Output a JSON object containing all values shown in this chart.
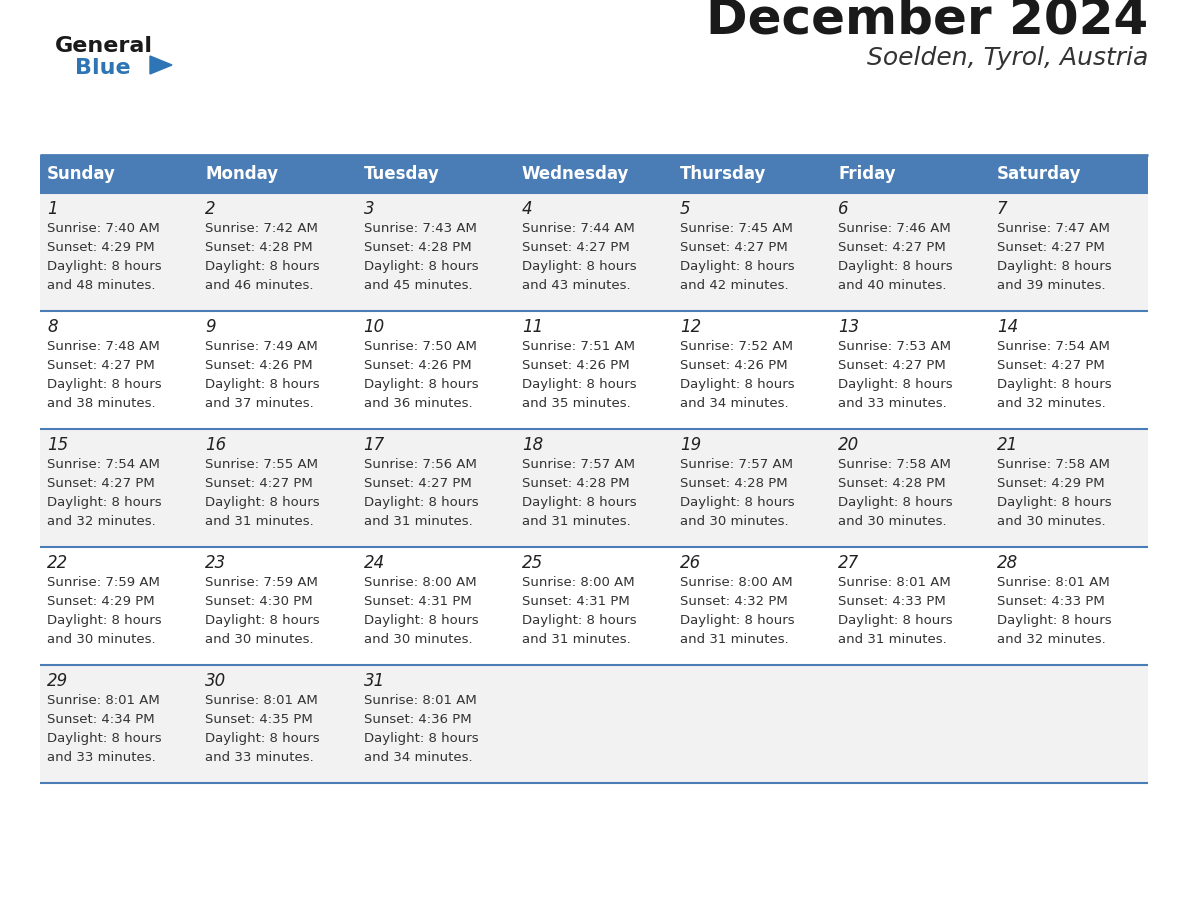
{
  "title": "December 2024",
  "subtitle": "Soelden, Tyrol, Austria",
  "days_of_week": [
    "Sunday",
    "Monday",
    "Tuesday",
    "Wednesday",
    "Thursday",
    "Friday",
    "Saturday"
  ],
  "header_bg": "#4A7DB5",
  "header_text": "#FFFFFF",
  "row_bg_odd": "#F2F2F2",
  "row_bg_even": "#FFFFFF",
  "separator_color": "#4A7DB5",
  "title_color": "#1a1a1a",
  "subtitle_color": "#333333",
  "day_num_color": "#222222",
  "cell_text_color": "#333333",
  "logo_general_color": "#1a1a1a",
  "logo_blue_color": "#2E75B6",
  "calendar_data": [
    [
      {
        "day": 1,
        "sunrise": "7:40 AM",
        "sunset": "4:29 PM",
        "daylight": "8 hours and 48 minutes."
      },
      {
        "day": 2,
        "sunrise": "7:42 AM",
        "sunset": "4:28 PM",
        "daylight": "8 hours and 46 minutes."
      },
      {
        "day": 3,
        "sunrise": "7:43 AM",
        "sunset": "4:28 PM",
        "daylight": "8 hours and 45 minutes."
      },
      {
        "day": 4,
        "sunrise": "7:44 AM",
        "sunset": "4:27 PM",
        "daylight": "8 hours and 43 minutes."
      },
      {
        "day": 5,
        "sunrise": "7:45 AM",
        "sunset": "4:27 PM",
        "daylight": "8 hours and 42 minutes."
      },
      {
        "day": 6,
        "sunrise": "7:46 AM",
        "sunset": "4:27 PM",
        "daylight": "8 hours and 40 minutes."
      },
      {
        "day": 7,
        "sunrise": "7:47 AM",
        "sunset": "4:27 PM",
        "daylight": "8 hours and 39 minutes."
      }
    ],
    [
      {
        "day": 8,
        "sunrise": "7:48 AM",
        "sunset": "4:27 PM",
        "daylight": "8 hours and 38 minutes."
      },
      {
        "day": 9,
        "sunrise": "7:49 AM",
        "sunset": "4:26 PM",
        "daylight": "8 hours and 37 minutes."
      },
      {
        "day": 10,
        "sunrise": "7:50 AM",
        "sunset": "4:26 PM",
        "daylight": "8 hours and 36 minutes."
      },
      {
        "day": 11,
        "sunrise": "7:51 AM",
        "sunset": "4:26 PM",
        "daylight": "8 hours and 35 minutes."
      },
      {
        "day": 12,
        "sunrise": "7:52 AM",
        "sunset": "4:26 PM",
        "daylight": "8 hours and 34 minutes."
      },
      {
        "day": 13,
        "sunrise": "7:53 AM",
        "sunset": "4:27 PM",
        "daylight": "8 hours and 33 minutes."
      },
      {
        "day": 14,
        "sunrise": "7:54 AM",
        "sunset": "4:27 PM",
        "daylight": "8 hours and 32 minutes."
      }
    ],
    [
      {
        "day": 15,
        "sunrise": "7:54 AM",
        "sunset": "4:27 PM",
        "daylight": "8 hours and 32 minutes."
      },
      {
        "day": 16,
        "sunrise": "7:55 AM",
        "sunset": "4:27 PM",
        "daylight": "8 hours and 31 minutes."
      },
      {
        "day": 17,
        "sunrise": "7:56 AM",
        "sunset": "4:27 PM",
        "daylight": "8 hours and 31 minutes."
      },
      {
        "day": 18,
        "sunrise": "7:57 AM",
        "sunset": "4:28 PM",
        "daylight": "8 hours and 31 minutes."
      },
      {
        "day": 19,
        "sunrise": "7:57 AM",
        "sunset": "4:28 PM",
        "daylight": "8 hours and 30 minutes."
      },
      {
        "day": 20,
        "sunrise": "7:58 AM",
        "sunset": "4:28 PM",
        "daylight": "8 hours and 30 minutes."
      },
      {
        "day": 21,
        "sunrise": "7:58 AM",
        "sunset": "4:29 PM",
        "daylight": "8 hours and 30 minutes."
      }
    ],
    [
      {
        "day": 22,
        "sunrise": "7:59 AM",
        "sunset": "4:29 PM",
        "daylight": "8 hours and 30 minutes."
      },
      {
        "day": 23,
        "sunrise": "7:59 AM",
        "sunset": "4:30 PM",
        "daylight": "8 hours and 30 minutes."
      },
      {
        "day": 24,
        "sunrise": "8:00 AM",
        "sunset": "4:31 PM",
        "daylight": "8 hours and 30 minutes."
      },
      {
        "day": 25,
        "sunrise": "8:00 AM",
        "sunset": "4:31 PM",
        "daylight": "8 hours and 31 minutes."
      },
      {
        "day": 26,
        "sunrise": "8:00 AM",
        "sunset": "4:32 PM",
        "daylight": "8 hours and 31 minutes."
      },
      {
        "day": 27,
        "sunrise": "8:01 AM",
        "sunset": "4:33 PM",
        "daylight": "8 hours and 31 minutes."
      },
      {
        "day": 28,
        "sunrise": "8:01 AM",
        "sunset": "4:33 PM",
        "daylight": "8 hours and 32 minutes."
      }
    ],
    [
      {
        "day": 29,
        "sunrise": "8:01 AM",
        "sunset": "4:34 PM",
        "daylight": "8 hours and 33 minutes."
      },
      {
        "day": 30,
        "sunrise": "8:01 AM",
        "sunset": "4:35 PM",
        "daylight": "8 hours and 33 minutes."
      },
      {
        "day": 31,
        "sunrise": "8:01 AM",
        "sunset": "4:36 PM",
        "daylight": "8 hours and 34 minutes."
      },
      null,
      null,
      null,
      null
    ]
  ]
}
